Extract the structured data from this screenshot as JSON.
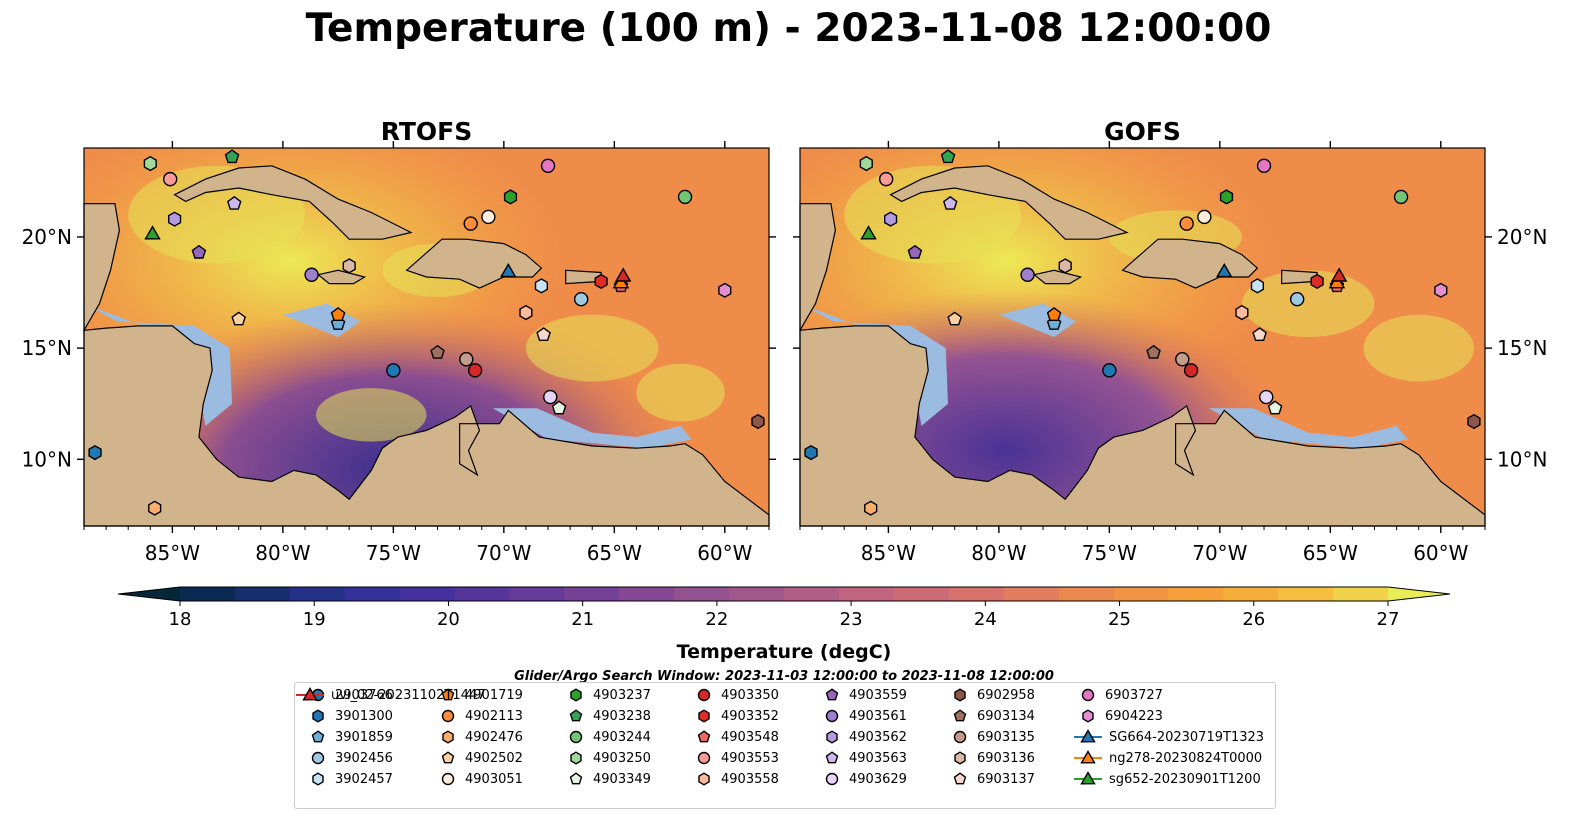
{
  "title": "Temperature (100 m) - 2023-11-08 12:00:00",
  "search_window": "Glider/Argo Search Window: 2023-11-03 12:00:00 to 2023-11-08 12:00:00",
  "colorbar": {
    "label": "Temperature (degC)",
    "ticks": [
      "18",
      "19",
      "20",
      "21",
      "22",
      "23",
      "24",
      "25",
      "26",
      "27"
    ],
    "min": 17.6,
    "max": 27.2,
    "colors": [
      "#06263a",
      "#0b2a52",
      "#172e6e",
      "#253088",
      "#33319a",
      "#44319e",
      "#55349c",
      "#663a98",
      "#754196",
      "#844992",
      "#935190",
      "#a1578c",
      "#b05e86",
      "#c06480",
      "#cc6a76",
      "#d8726c",
      "#e37b5e",
      "#ec874e",
      "#f29342",
      "#f5a03a",
      "#f6ae38",
      "#f6be40",
      "#f1d24b",
      "#e8ec57"
    ]
  },
  "land_color": "#d2b48c",
  "shelf_color": "#9cbbe0",
  "deep_pacific_color": "#0a2233",
  "panels": [
    {
      "title": "RTOFS"
    },
    {
      "title": "GOFS"
    }
  ],
  "chart_data": {
    "type": "map",
    "projection": "PlateCarree",
    "lon_range": [
      -89,
      -58
    ],
    "lat_range": [
      7,
      24
    ],
    "lon_ticks": [
      -85,
      -80,
      -75,
      -70,
      -65,
      -60
    ],
    "lon_tick_labels": [
      "85°W",
      "80°W",
      "75°W",
      "70°W",
      "65°W",
      "60°W"
    ],
    "lat_ticks": [
      10,
      15,
      20
    ],
    "lat_tick_labels": [
      "10°N",
      "15°N",
      "20°N"
    ],
    "observations": [
      {
        "name": "2903766",
        "marker": "circle",
        "color": "#1f77b4",
        "lon": -75.0,
        "lat": 14.0
      },
      {
        "name": "3901300",
        "marker": "hexagon",
        "color": "#1f77b4",
        "lon": -88.5,
        "lat": 10.3
      },
      {
        "name": "3901859",
        "marker": "pentagon",
        "color": "#6baed6",
        "lon": -77.5,
        "lat": 16.1
      },
      {
        "name": "3902456",
        "marker": "circle",
        "color": "#9ecae1",
        "lon": -66.5,
        "lat": 17.2
      },
      {
        "name": "3902457",
        "marker": "hexagon",
        "color": "#c6e4f6",
        "lon": -68.3,
        "lat": 17.8
      },
      {
        "name": "4901719",
        "marker": "pentagon",
        "color": "#ff7f0e",
        "lon": -77.5,
        "lat": 16.5
      },
      {
        "name": "4902113",
        "marker": "circle",
        "color": "#fd8d3c",
        "lon": -71.5,
        "lat": 20.6
      },
      {
        "name": "4902476",
        "marker": "hexagon",
        "color": "#fdae6b",
        "lon": -85.8,
        "lat": 7.8
      },
      {
        "name": "4902502",
        "marker": "pentagon",
        "color": "#fdd0a2",
        "lon": -82.0,
        "lat": 16.3
      },
      {
        "name": "4903051",
        "marker": "circle",
        "color": "#feeddc",
        "lon": -70.7,
        "lat": 20.9
      },
      {
        "name": "4903237",
        "marker": "hexagon",
        "color": "#2ca02c",
        "lon": -69.7,
        "lat": 21.8
      },
      {
        "name": "4903238",
        "marker": "pentagon",
        "color": "#31a354",
        "lon": -82.3,
        "lat": 23.6
      },
      {
        "name": "4903244",
        "marker": "circle",
        "color": "#74c476",
        "lon": -61.8,
        "lat": 21.8
      },
      {
        "name": "4903250",
        "marker": "hexagon",
        "color": "#a1d99b",
        "lon": -86.0,
        "lat": 23.3
      },
      {
        "name": "4903349",
        "marker": "pentagon",
        "color": "#e5f5e0",
        "lon": -67.5,
        "lat": 12.3
      },
      {
        "name": "4903350",
        "marker": "circle",
        "color": "#d62728",
        "lon": -71.3,
        "lat": 14.0
      },
      {
        "name": "4903352",
        "marker": "hexagon",
        "color": "#de2d26",
        "lon": -65.6,
        "lat": 18.0
      },
      {
        "name": "4903548",
        "marker": "pentagon",
        "color": "#f26762",
        "lon": -64.7,
        "lat": 17.8
      },
      {
        "name": "4903553",
        "marker": "circle",
        "color": "#fb9a99",
        "lon": -85.1,
        "lat": 22.6
      },
      {
        "name": "4903558",
        "marker": "hexagon",
        "color": "#fcbba1",
        "lon": -69.0,
        "lat": 16.6
      },
      {
        "name": "4903559",
        "marker": "pentagon",
        "color": "#9467bd",
        "lon": -83.8,
        "lat": 19.3
      },
      {
        "name": "4903561",
        "marker": "circle",
        "color": "#9e7fce",
        "lon": -78.7,
        "lat": 18.3
      },
      {
        "name": "4903562",
        "marker": "hexagon",
        "color": "#b79be0",
        "lon": -84.9,
        "lat": 20.8
      },
      {
        "name": "4903563",
        "marker": "pentagon",
        "color": "#cdb8ee",
        "lon": -82.2,
        "lat": 21.5
      },
      {
        "name": "4903629",
        "marker": "circle",
        "color": "#e8d4f8",
        "lon": -67.9,
        "lat": 12.8
      },
      {
        "name": "6902958",
        "marker": "hexagon",
        "color": "#8c564b",
        "lon": -58.5,
        "lat": 11.7
      },
      {
        "name": "6903134",
        "marker": "pentagon",
        "color": "#a0715f",
        "lon": -73.0,
        "lat": 14.8
      },
      {
        "name": "6903135",
        "marker": "circle",
        "color": "#c49c8a",
        "lon": -71.7,
        "lat": 14.5
      },
      {
        "name": "6903136",
        "marker": "hexagon",
        "color": "#dcb8a8",
        "lon": -77.0,
        "lat": 18.7
      },
      {
        "name": "6903137",
        "marker": "pentagon",
        "color": "#f7d8cc",
        "lon": -68.2,
        "lat": 15.6
      },
      {
        "name": "6903727",
        "marker": "circle",
        "color": "#e377c2",
        "lon": -68.0,
        "lat": 23.2
      },
      {
        "name": "6904223",
        "marker": "hexagon",
        "color": "#e68fd0",
        "lon": -60.0,
        "lat": 17.6
      },
      {
        "name": "SG664-20230719T1323",
        "marker": "triangle",
        "color": "#1f77b4",
        "lon": -69.8,
        "lat": 18.4
      },
      {
        "name": "ng278-20230824T0000",
        "marker": "triangle",
        "color": "#ff7f0e",
        "lon": -64.7,
        "lat": 17.9
      },
      {
        "name": "sg652-20230901T1200",
        "marker": "triangle",
        "color": "#2ca02c",
        "lon": -85.9,
        "lat": 20.1
      },
      {
        "name": "uvi_02-20231102T1447",
        "marker": "triangle",
        "color": "#d62728",
        "lon": -64.6,
        "lat": 18.2
      }
    ]
  }
}
